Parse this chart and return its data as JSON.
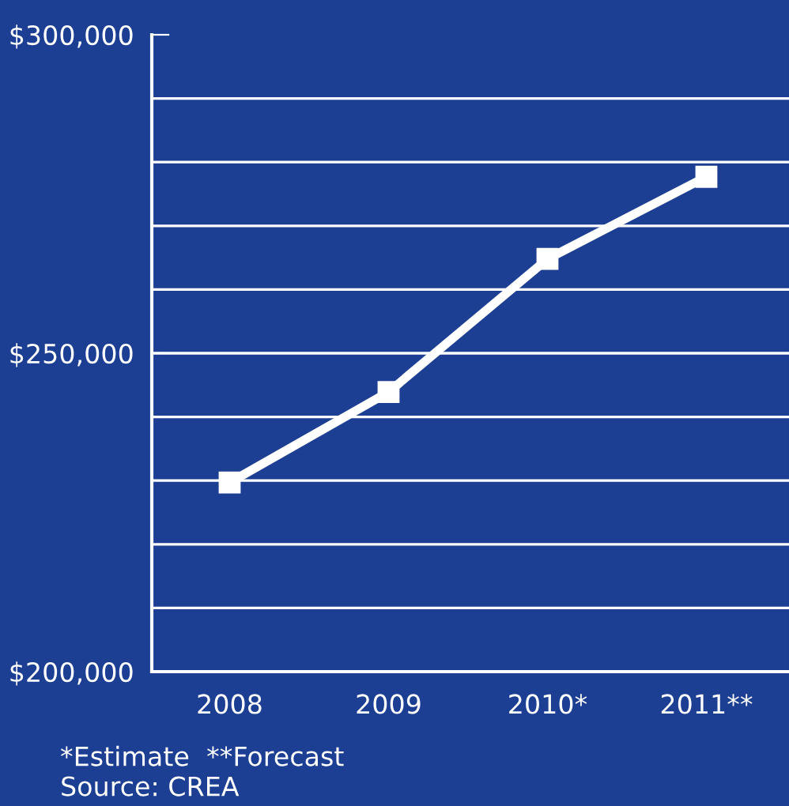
{
  "chart_data": {
    "type": "line",
    "categories": [
      "2008",
      "2009",
      "2010*",
      "2011**"
    ],
    "series": [
      {
        "color": "#ffffff",
        "values": [
          229700,
          243900,
          264800,
          277700
        ]
      }
    ],
    "ylim": [
      200000,
      300000
    ],
    "yticks": [
      {
        "value": 200000,
        "label": "$200,000"
      },
      {
        "value": 210000,
        "label": null
      },
      {
        "value": 220000,
        "label": null
      },
      {
        "value": 230000,
        "label": null
      },
      {
        "value": 240000,
        "label": null
      },
      {
        "value": 250000,
        "label": "$250,000"
      },
      {
        "value": 260000,
        "label": null
      },
      {
        "value": 270000,
        "label": null
      },
      {
        "value": 280000,
        "label": null
      },
      {
        "value": 290000,
        "label": null
      },
      {
        "value": 300000,
        "label": "$300,000"
      }
    ],
    "grid": "y",
    "marker": "square",
    "line_style": "solid",
    "legend": false,
    "annotations": [
      "*Estimate  **Forecast",
      "Source: CREA"
    ]
  }
}
